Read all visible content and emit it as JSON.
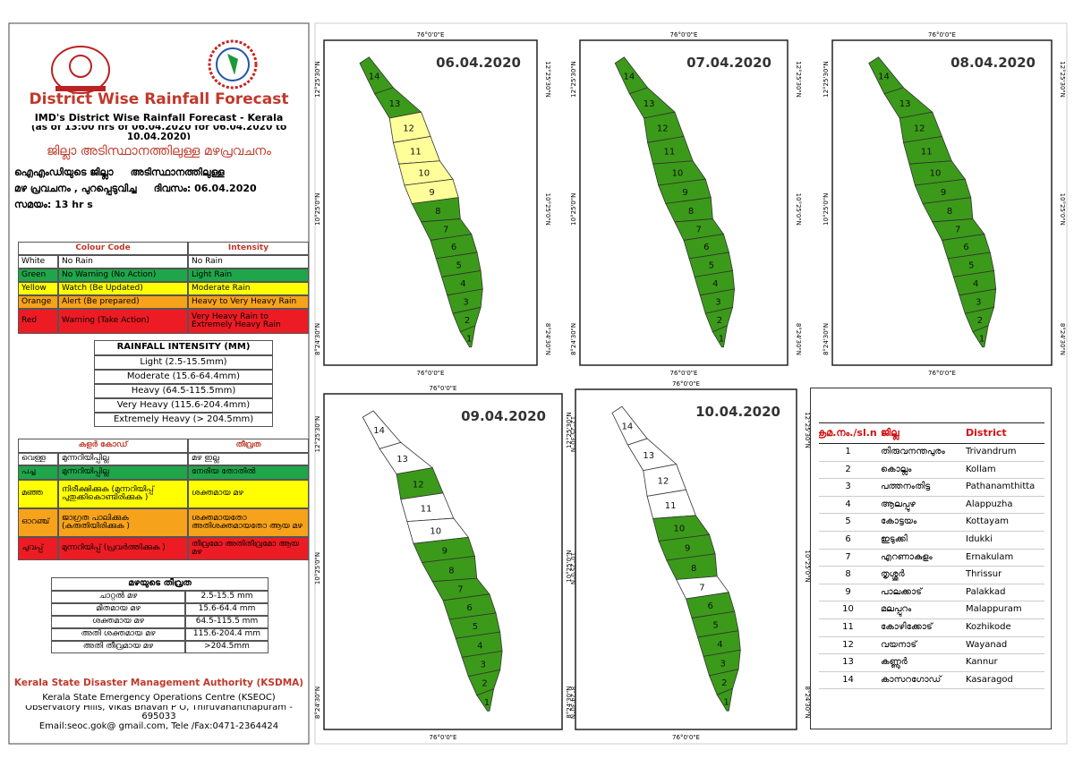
{
  "header": {
    "title": "District Wise Rainfall Forecast",
    "subtitle": "IMD's District Wise Rainfall Forecast - Kerala",
    "period": "(as of 13:00 hrs of 06.04.2020  for 06.04.2020  to 10.04.2020)",
    "title_ml": "ജില്ലാ അടിസ്ഥാനത്തിലുള്ള മഴപ്രവചനം"
  },
  "issue_ml": [
    "ഐഎംഡിയുടെ ജില്ലാ     അടിസ്ഥാനത്തിലുള്ള",
    "മഴ പ്രവചനം , പുറപ്പെടുവിച്ച     ദിവസം: 06.04.2020",
    "സമയം: 13 hr s"
  ],
  "colour_code": {
    "header": [
      "Colour Code",
      "Intensity"
    ],
    "rows": [
      [
        "White",
        "No Rain",
        "No Rain"
      ],
      [
        "Green",
        "No Warning (No Action)",
        "Light Rain"
      ],
      [
        "Yellow",
        "Watch (Be Updated)",
        "Moderate Rain"
      ],
      [
        "Orange",
        "Alert (Be prepared)",
        "Heavy to Very Heavy Rain"
      ],
      [
        "Red",
        "Warning (Take Action)",
        "Very Heavy Rain to Extremely Heavy Rain"
      ]
    ],
    "colors": [
      "#ffffff",
      "#1fa64a",
      "#ffff00",
      "#f7a21b",
      "#ed1c24"
    ]
  },
  "rainfall_intensity": {
    "title": "RAINFALL INTENSITY (MM)",
    "rows": [
      "Light (2.5-15.5mm)",
      "Moderate (15.6-64.4mm)",
      "Heavy (64.5-115.5mm)",
      "Very Heavy (115.6-204.4mm)",
      "Extremely Heavy (> 204.5mm)"
    ]
  },
  "colour_code_ml": {
    "header": [
      "കളർ കോഡ്",
      "തീവ്രത"
    ],
    "rows": [
      [
        "വെള്ള",
        "മുന്നറിയിപ്പില്ല",
        "മഴ ഇല്ല"
      ],
      [
        "പച്ച",
        "മുന്നറിയിപ്പില്ല",
        "നേരിയ തോതിൽ"
      ],
      [
        "മഞ്ഞ",
        "നിരീക്ഷിക്കുക (മുന്നറിയിപ്പ് പുതുക്കികൊണ്ടിരിക്കുക )",
        "ശക്തമായ മഴ"
      ],
      [
        "ഓറഞ്ച്",
        "ജാഗ്രത പാലിക്കുക (കരുതിയിരിക്കുക )",
        "ശക്തമായതോ അതിശക്തമായതോ ആയ മഴ"
      ],
      [
        "ചുവപ്പ്",
        "മുന്നറിയിപ്പ് (പ്രവർത്തിക്കുക )",
        "തീവ്രമോ അതിതീവ്രമോ ആയ മഴ"
      ]
    ],
    "colors": [
      "#ffffff",
      "#1fa64a",
      "#ffff00",
      "#f7a21b",
      "#ed1c24"
    ]
  },
  "intensity_ml": {
    "title": "മഴയുടെ തീവ്രത",
    "rows": [
      [
        "ചാറ്റൽ മഴ",
        "2.5-15.5 mm"
      ],
      [
        "മിതമായ മഴ",
        "15.6-64.4 mm"
      ],
      [
        "ശക്തമായ മഴ",
        "64.5-115.5 mm"
      ],
      [
        "അതി ശക്തമായ മഴ",
        "115.6-204.4 mm"
      ],
      [
        "അതി തീവ്രമായ മഴ",
        ">204.5mm"
      ]
    ]
  },
  "footer": {
    "org": "Kerala State Disaster Management Authority (KSDMA)",
    "lines": [
      "Kerala State Emergency Operations Centre (KSEOC)",
      "Observatory Hills, Vikas Bhavan P O, Thiruvananthapuram - 695033",
      "Email:seoc.gok@ gmail.com, Tele /Fax:0471-2364424"
    ]
  },
  "map_axes": {
    "longitude": "76°0'0\"E",
    "latitudes": [
      "12°25'30\"N",
      "10°25'0\"N",
      "8°24'30\"N"
    ]
  },
  "maps": [
    {
      "date": "06.04.2020",
      "district_colors": [
        "#3c9a1a",
        "#3c9a1a",
        "#3c9a1a",
        "#3c9a1a",
        "#3c9a1a",
        "#3c9a1a",
        "#3c9a1a",
        "#3c9a1a",
        "#ffff9a",
        "#ffff9a",
        "#ffff9a",
        "#ffff9a",
        "#3c9a1a",
        "#3c9a1a"
      ]
    },
    {
      "date": "07.04.2020",
      "district_colors": [
        "#3c9a1a",
        "#3c9a1a",
        "#3c9a1a",
        "#3c9a1a",
        "#3c9a1a",
        "#3c9a1a",
        "#3c9a1a",
        "#3c9a1a",
        "#3c9a1a",
        "#3c9a1a",
        "#3c9a1a",
        "#3c9a1a",
        "#3c9a1a",
        "#3c9a1a"
      ]
    },
    {
      "date": "08.04.2020",
      "district_colors": [
        "#3c9a1a",
        "#3c9a1a",
        "#3c9a1a",
        "#3c9a1a",
        "#3c9a1a",
        "#3c9a1a",
        "#3c9a1a",
        "#3c9a1a",
        "#3c9a1a",
        "#3c9a1a",
        "#3c9a1a",
        "#3c9a1a",
        "#3c9a1a",
        "#3c9a1a"
      ]
    },
    {
      "date": "09.04.2020",
      "district_colors": [
        "#3c9a1a",
        "#3c9a1a",
        "#3c9a1a",
        "#3c9a1a",
        "#3c9a1a",
        "#3c9a1a",
        "#3c9a1a",
        "#3c9a1a",
        "#3c9a1a",
        "#ffffff",
        "#ffffff",
        "#3c9a1a",
        "#ffffff",
        "#ffffff"
      ]
    },
    {
      "date": "10.04.2020",
      "district_colors": [
        "#3c9a1a",
        "#3c9a1a",
        "#3c9a1a",
        "#3c9a1a",
        "#3c9a1a",
        "#3c9a1a",
        "#ffffff",
        "#3c9a1a",
        "#3c9a1a",
        "#3c9a1a",
        "#ffffff",
        "#ffffff",
        "#ffffff",
        "#ffffff"
      ]
    }
  ],
  "districts": {
    "header": [
      "ക്രമ.നം./sl.n.",
      "ജില്ല",
      "District"
    ],
    "rows": [
      [
        "1",
        "തിരുവനന്തപുരം",
        "Trivandrum"
      ],
      [
        "2",
        "കൊല്ലം",
        "Kollam"
      ],
      [
        "3",
        "പത്തനംതിട്ട",
        "Pathanamthitta"
      ],
      [
        "4",
        "ആലപ്പുഴ",
        "Alappuzha"
      ],
      [
        "5",
        "കോട്ടയം",
        "Kottayam"
      ],
      [
        "6",
        "ഇടുക്കി",
        "Idukki"
      ],
      [
        "7",
        "എറണാകുളം",
        "Ernakulam"
      ],
      [
        "8",
        "തൃശ്ശൂർ",
        "Thrissur"
      ],
      [
        "9",
        "പാലക്കാട്",
        "Palakkad"
      ],
      [
        "10",
        "മലപ്പുറം",
        "Malappuram"
      ],
      [
        "11",
        "കോഴിക്കോട്",
        "Kozhikode"
      ],
      [
        "12",
        "വയനാട്",
        "Wayanad"
      ],
      [
        "13",
        "കണ്ണൂർ",
        "Kannur"
      ],
      [
        "14",
        "കാസറഗോഡ്",
        "Kasaragod"
      ]
    ]
  }
}
